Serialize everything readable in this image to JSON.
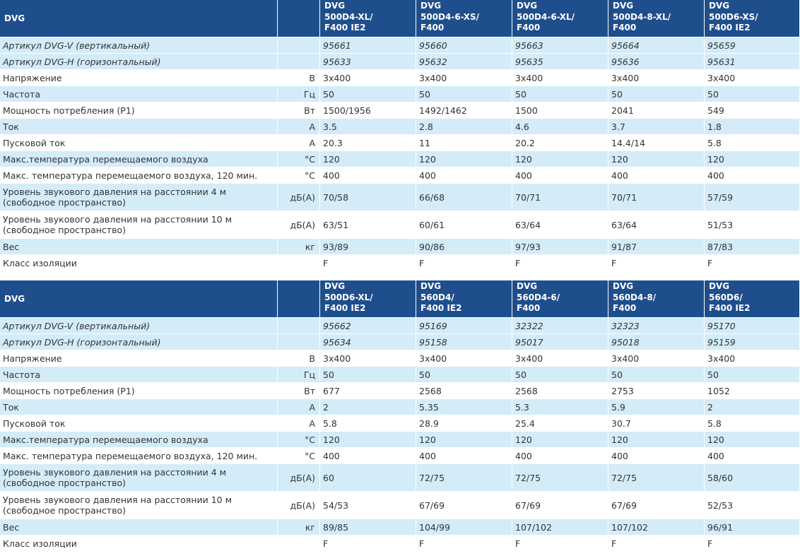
{
  "tables": [
    {
      "header": {
        "model_label": "DVG",
        "models": [
          "DVG\n500D4-XL/\nF400 IE2",
          "DVG\n500D4-6-XS/\nF400",
          "DVG\n500D4-6-XL/\nF400",
          "DVG\n500D4-8-XL/\nF400",
          "DVG\n500D6-XS/\nF400 IE2"
        ]
      },
      "rows": [
        {
          "label": "Артикул    DVG-V (вертикальный)",
          "unit": "",
          "values": [
            "95661",
            "95660",
            "95663",
            "95664",
            "95659"
          ]
        },
        {
          "label": "Артикул    DVG-H (горизонтальный)",
          "unit": "",
          "values": [
            "95633",
            "95632",
            "95635",
            "95636",
            "95631"
          ]
        },
        {
          "label": "Напряжение",
          "unit": "В",
          "values": [
            "3x400",
            "3x400",
            "3x400",
            "3x400",
            "3x400"
          ]
        },
        {
          "label": "Частота",
          "unit": "Гц",
          "values": [
            "50",
            "50",
            "50",
            "50",
            "50"
          ]
        },
        {
          "label": "Мощность потребления (P1)",
          "unit": "Вт",
          "values": [
            "1500/1956",
            "1492/1462",
            "1500",
            "2041",
            "549"
          ]
        },
        {
          "label": "Ток",
          "unit": "А",
          "values": [
            "3.5",
            "2.8",
            "4.6",
            "3.7",
            "1.8"
          ]
        },
        {
          "label": "Пусковой ток",
          "unit": "А",
          "values": [
            "20.3",
            "11",
            "20.2",
            "14.4/14",
            "5.8"
          ]
        },
        {
          "label": "Макс.температура перемещаемого воздуха",
          "unit": "°С",
          "values": [
            "120",
            "120",
            "120",
            "120",
            "120"
          ]
        },
        {
          "label": "Макс. температура перемещаемого воздуха, 120 мин.",
          "unit": "°С",
          "values": [
            "400",
            "400",
            "400",
            "400",
            "400"
          ]
        },
        {
          "label": "Уровень звукового давления на расстоянии 4 м\n(свободное пространство)",
          "unit": "дБ(А)",
          "values": [
            "70/58",
            "66/68",
            "70/71",
            "70/71",
            "57/59"
          ]
        },
        {
          "label": "Уровень звукового давления на расстоянии 10 м\n(свободное пространство)",
          "unit": "дБ(А)",
          "values": [
            "63/51",
            "60/61",
            "63/64",
            "63/64",
            "51/53"
          ]
        },
        {
          "label": "Вес",
          "unit": "кг",
          "values": [
            "93/89",
            "90/86",
            "97/93",
            "91/87",
            "87/83"
          ]
        },
        {
          "label": "Класс изоляции",
          "unit": "",
          "values": [
            "F",
            "F",
            "F",
            "F",
            "F"
          ]
        }
      ]
    },
    {
      "header": {
        "model_label": "DVG",
        "models": [
          "DVG\n500D6-XL/\nF400 IE2",
          "DVG\n560D4/\nF400 IE2",
          "DVG\n560D4-6/\nF400",
          "DVG\n560D4-8/\nF400",
          "DVG\n560D6/\nF400 IE2"
        ]
      },
      "rows": [
        {
          "label": "Артикул    DVG-V (вертикальный)",
          "unit": "",
          "values": [
            "95662",
            "95169",
            "32322",
            "32323",
            "95170"
          ]
        },
        {
          "label": "Артикул    DVG-H (горизонтальный)",
          "unit": "",
          "values": [
            "95634",
            "95158",
            "95017",
            "95018",
            "95159"
          ]
        },
        {
          "label": "Напряжение",
          "unit": "В",
          "values": [
            "3x400",
            "3x400",
            "3x400",
            "3x400",
            "3x400"
          ]
        },
        {
          "label": "Частота",
          "unit": "Гц",
          "values": [
            "50",
            "50",
            "50",
            "50",
            "50"
          ]
        },
        {
          "label": "Мощность потребления (P1)",
          "unit": "Вт",
          "values": [
            "677",
            "2568",
            "2568",
            "2753",
            "1052"
          ]
        },
        {
          "label": "Ток",
          "unit": "А",
          "values": [
            "2",
            "5.35",
            "5.3",
            "5.9",
            "2"
          ]
        },
        {
          "label": "Пусковой ток",
          "unit": "А",
          "values": [
            "5.8",
            "28.9",
            "25.4",
            "30.7",
            "5.8"
          ]
        },
        {
          "label": "Макс.температура перемещаемого воздуха",
          "unit": "°С",
          "values": [
            "120",
            "120",
            "120",
            "120",
            "120"
          ]
        },
        {
          "label": "Макс. температура перемещаемого воздуха, 120 мин.",
          "unit": "°С",
          "values": [
            "400",
            "400",
            "400",
            "400",
            "400"
          ]
        },
        {
          "label": "Уровень звукового давления на расстоянии 4 м\n(свободное пространство)",
          "unit": "дБ(А)",
          "values": [
            "60",
            "72/75",
            "72/75",
            "72/75",
            "58/60"
          ]
        },
        {
          "label": "Уровень звукового давления на расстоянии 10 м\n(свободное пространство)",
          "unit": "дБ(А)",
          "values": [
            "54/53",
            "67/69",
            "67/69",
            "67/69",
            "52/53"
          ]
        },
        {
          "label": "Вес",
          "unit": "кг",
          "values": [
            "89/85",
            "104/99",
            "107/102",
            "107/102",
            "96/91"
          ]
        },
        {
          "label": "Класс изоляции",
          "unit": "",
          "values": [
            "F",
            "F",
            "F",
            "F",
            "F"
          ]
        }
      ]
    }
  ],
  "colors": {
    "header_bg": "#1f4e8c",
    "header_text": "#ffffff",
    "stripe": "#d3ecf8",
    "text": "#333333"
  }
}
